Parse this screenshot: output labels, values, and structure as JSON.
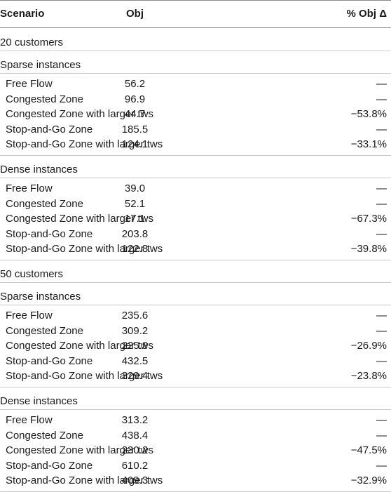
{
  "headers": {
    "scenario": "Scenario",
    "obj": "Obj",
    "delta": "% Obj Δ"
  },
  "groups": [
    {
      "label": "20 customers",
      "subgroups": [
        {
          "label": "Sparse instances",
          "rows": [
            {
              "scenario": "Free Flow",
              "obj": "56.2",
              "delta": "—"
            },
            {
              "scenario": "Congested Zone",
              "obj": "96.9",
              "delta": "—"
            },
            {
              "scenario": "Congested Zone with larger tws",
              "obj": "44.7",
              "delta": "−53.8%"
            },
            {
              "scenario": "Stop-and-Go Zone",
              "obj": "185.5",
              "delta": "—"
            },
            {
              "scenario": "Stop-and-Go Zone with larger tws",
              "obj": "124.1",
              "delta": "−33.1%"
            }
          ]
        },
        {
          "label": "Dense instances",
          "rows": [
            {
              "scenario": "Free Flow",
              "obj": "39.0",
              "delta": "—"
            },
            {
              "scenario": "Congested Zone",
              "obj": "52.1",
              "delta": "—"
            },
            {
              "scenario": "Congested Zone with larger tws",
              "obj": "17.1",
              "delta": "−67.3%"
            },
            {
              "scenario": "Stop-and-Go Zone",
              "obj": "203.8",
              "delta": "—"
            },
            {
              "scenario": "Stop-and-Go Zone with larger tws",
              "obj": "122.8",
              "delta": "−39.8%"
            }
          ]
        }
      ]
    },
    {
      "label": "50 customers",
      "subgroups": [
        {
          "label": "Sparse instances",
          "rows": [
            {
              "scenario": "Free Flow",
              "obj": "235.6",
              "delta": "—"
            },
            {
              "scenario": "Congested Zone",
              "obj": "309.2",
              "delta": "—"
            },
            {
              "scenario": "Congested Zone with larger tws",
              "obj": "225.9",
              "delta": "−26.9%"
            },
            {
              "scenario": "Stop-and-Go Zone",
              "obj": "432.5",
              "delta": "—"
            },
            {
              "scenario": "Stop-and-Go Zone with larger tws",
              "obj": "329.4",
              "delta": "−23.8%"
            }
          ]
        },
        {
          "label": "Dense instances",
          "rows": [
            {
              "scenario": "Free Flow",
              "obj": "313.2",
              "delta": "—"
            },
            {
              "scenario": "Congested Zone",
              "obj": "438.4",
              "delta": "—"
            },
            {
              "scenario": "Congested Zone with larger tws",
              "obj": "230.2",
              "delta": "−47.5%"
            },
            {
              "scenario": "Stop-and-Go Zone",
              "obj": "610.2",
              "delta": "—"
            },
            {
              "scenario": "Stop-and-Go Zone with larger tws",
              "obj": "409.3",
              "delta": "−32.9%"
            }
          ]
        }
      ]
    }
  ]
}
